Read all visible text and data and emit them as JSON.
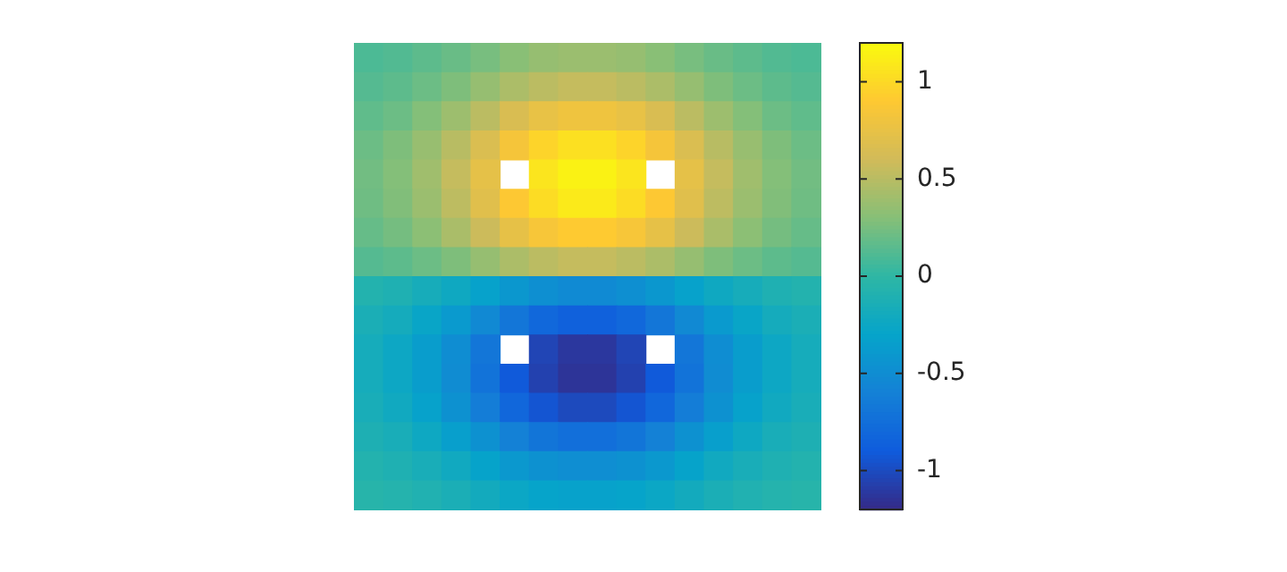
{
  "chart_data": {
    "type": "heatmap",
    "tick_labels": false,
    "categories": [
      null,
      null,
      null,
      null,
      null,
      null,
      null,
      null,
      null,
      null,
      null,
      null,
      null,
      null,
      null,
      null
    ],
    "y_categories": [
      null,
      null,
      null,
      null,
      null,
      null,
      null,
      null,
      null,
      null,
      null,
      null,
      null,
      null,
      null,
      null
    ],
    "clim": [
      -1.2,
      1.2
    ],
    "cticks": [
      {
        "value": -1,
        "label": "-1"
      },
      {
        "value": -0.5,
        "label": "-0.5"
      },
      0,
      0.5,
      1
    ],
    "cells": [
      [
        0.1,
        0.12,
        0.16,
        0.2,
        0.25,
        0.31,
        0.36,
        0.38,
        0.38,
        0.36,
        0.31,
        0.25,
        0.2,
        0.16,
        0.12,
        0.1
      ],
      [
        0.13,
        0.16,
        0.21,
        0.27,
        0.36,
        0.45,
        0.51,
        0.55,
        0.55,
        0.51,
        0.45,
        0.36,
        0.27,
        0.21,
        0.16,
        0.13
      ],
      [
        0.17,
        0.21,
        0.29,
        0.39,
        0.51,
        0.65,
        0.75,
        0.8,
        0.8,
        0.75,
        0.65,
        0.51,
        0.39,
        0.29,
        0.21,
        0.17
      ],
      [
        0.21,
        0.27,
        0.37,
        0.5,
        0.66,
        0.84,
        0.97,
        1.04,
        1.04,
        0.97,
        0.84,
        0.66,
        0.5,
        0.37,
        0.27,
        0.21
      ],
      [
        0.23,
        0.29,
        0.4,
        0.55,
        0.73,
        null,
        1.07,
        1.15,
        1.15,
        1.07,
        null,
        0.73,
        0.55,
        0.4,
        0.29,
        0.23
      ],
      [
        0.22,
        0.28,
        0.38,
        0.52,
        0.7,
        0.89,
        1.02,
        1.1,
        1.1,
        1.02,
        0.89,
        0.7,
        0.52,
        0.38,
        0.28,
        0.22
      ],
      [
        0.19,
        0.24,
        0.32,
        0.44,
        0.58,
        0.74,
        0.85,
        0.91,
        0.91,
        0.85,
        0.74,
        0.58,
        0.44,
        0.32,
        0.24,
        0.19
      ],
      [
        0.13,
        0.16,
        0.21,
        0.27,
        0.36,
        0.45,
        0.51,
        0.55,
        0.55,
        0.51,
        0.45,
        0.36,
        0.27,
        0.21,
        0.16,
        0.13
      ],
      [
        -0.08,
        -0.11,
        -0.17,
        -0.23,
        -0.32,
        -0.41,
        -0.48,
        -0.52,
        -0.52,
        -0.48,
        -0.41,
        -0.32,
        -0.23,
        -0.17,
        -0.11,
        -0.08
      ],
      [
        -0.14,
        -0.19,
        -0.28,
        -0.39,
        -0.53,
        -0.69,
        -0.8,
        -0.86,
        -0.86,
        -0.8,
        -0.69,
        -0.53,
        -0.39,
        -0.28,
        -0.19,
        -0.14
      ],
      [
        -0.18,
        -0.25,
        -0.36,
        -0.5,
        -0.69,
        null,
        -1.04,
        -1.12,
        -1.12,
        -1.04,
        null,
        -0.69,
        -0.5,
        -0.36,
        -0.25,
        -0.18
      ],
      [
        -0.18,
        -0.25,
        -0.36,
        -0.51,
        -0.71,
        -0.91,
        -1.06,
        -1.14,
        -1.14,
        -1.06,
        -0.91,
        -0.71,
        -0.51,
        -0.36,
        -0.25,
        -0.18
      ],
      [
        -0.16,
        -0.22,
        -0.32,
        -0.46,
        -0.63,
        -0.81,
        -0.94,
        -1.01,
        -1.01,
        -0.94,
        -0.81,
        -0.63,
        -0.46,
        -0.32,
        -0.22,
        -0.16
      ],
      [
        -0.12,
        -0.16,
        -0.24,
        -0.34,
        -0.46,
        -0.6,
        -0.7,
        -0.75,
        -0.75,
        -0.7,
        -0.6,
        -0.46,
        -0.34,
        -0.24,
        -0.16,
        -0.12
      ],
      [
        -0.08,
        -0.11,
        -0.16,
        -0.22,
        -0.31,
        -0.4,
        -0.46,
        -0.49,
        -0.49,
        -0.46,
        -0.4,
        -0.31,
        -0.22,
        -0.16,
        -0.11,
        -0.08
      ],
      [
        -0.05,
        -0.07,
        -0.1,
        -0.14,
        -0.2,
        -0.26,
        -0.3,
        -0.32,
        -0.32,
        -0.3,
        -0.26,
        -0.2,
        -0.14,
        -0.1,
        -0.07,
        -0.05
      ]
    ]
  }
}
